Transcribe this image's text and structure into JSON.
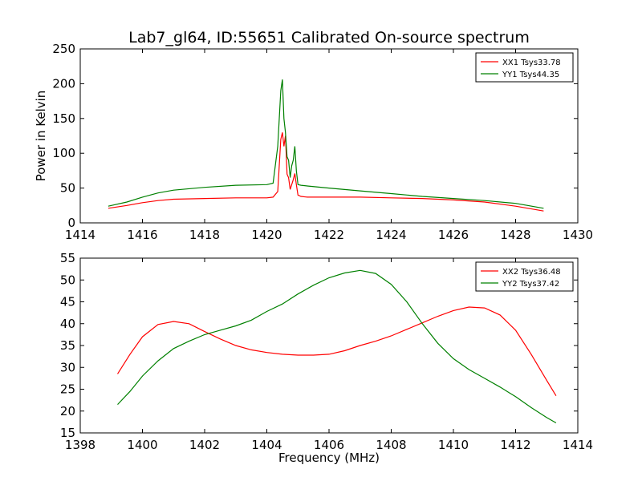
{
  "title": "Lab7_gl64, ID:55651 Calibrated On-source spectrum",
  "chart_data": [
    {
      "type": "line",
      "ylabel": "Power in Kelvin",
      "xlabel": "",
      "xlim": [
        1414,
        1430
      ],
      "ylim": [
        0,
        250
      ],
      "xticks": [
        1414,
        1416,
        1418,
        1420,
        1422,
        1424,
        1426,
        1428,
        1430
      ],
      "yticks": [
        0,
        50,
        100,
        150,
        200,
        250
      ],
      "legend_position": "top-right",
      "series": [
        {
          "name": "XX1 Tsys33.78",
          "color": "#ff0000",
          "x": [
            1414.9,
            1415.5,
            1416.0,
            1416.5,
            1417.0,
            1418.0,
            1419.0,
            1420.0,
            1420.2,
            1420.35,
            1420.45,
            1420.5,
            1420.55,
            1420.6,
            1420.65,
            1420.7,
            1420.75,
            1420.8,
            1420.85,
            1420.9,
            1420.95,
            1421.0,
            1421.1,
            1421.3,
            1422.0,
            1423.0,
            1424.0,
            1425.0,
            1426.0,
            1427.0,
            1428.0,
            1428.9
          ],
          "y": [
            21,
            25,
            29,
            32,
            34,
            35,
            36,
            36,
            37,
            45,
            120,
            130,
            110,
            125,
            70,
            65,
            48,
            55,
            62,
            71,
            55,
            40,
            38,
            37,
            37,
            37,
            36,
            35,
            33,
            30,
            24,
            17
          ]
        },
        {
          "name": "YY1 Tsys44.35",
          "color": "#008000",
          "x": [
            1414.9,
            1415.5,
            1416.0,
            1416.5,
            1417.0,
            1418.0,
            1419.0,
            1420.0,
            1420.2,
            1420.35,
            1420.45,
            1420.5,
            1420.55,
            1420.6,
            1420.65,
            1420.7,
            1420.75,
            1420.8,
            1420.85,
            1420.9,
            1420.95,
            1421.0,
            1421.1,
            1421.3,
            1422.0,
            1423.0,
            1424.0,
            1425.0,
            1426.0,
            1427.0,
            1428.0,
            1428.9
          ],
          "y": [
            24,
            30,
            37,
            43,
            47,
            51,
            54,
            55,
            57,
            110,
            190,
            206,
            150,
            130,
            95,
            90,
            65,
            82,
            90,
            110,
            75,
            55,
            54,
            53,
            50,
            46,
            42,
            38,
            35,
            32,
            28,
            21
          ]
        }
      ]
    },
    {
      "type": "line",
      "ylabel": "",
      "xlabel": "Frequency (MHz)",
      "xlim": [
        1398,
        1414
      ],
      "ylim": [
        15,
        55
      ],
      "xticks": [
        1398,
        1400,
        1402,
        1404,
        1406,
        1408,
        1410,
        1412,
        1414
      ],
      "yticks": [
        15,
        20,
        25,
        30,
        35,
        40,
        45,
        50,
        55
      ],
      "legend_position": "top-right",
      "series": [
        {
          "name": "XX2 Tsys36.48",
          "color": "#ff0000",
          "x": [
            1399.2,
            1399.6,
            1400.0,
            1400.5,
            1401.0,
            1401.5,
            1402.0,
            1402.5,
            1403.0,
            1403.5,
            1404.0,
            1404.5,
            1405.0,
            1405.5,
            1406.0,
            1406.5,
            1407.0,
            1407.5,
            1408.0,
            1408.5,
            1409.0,
            1409.5,
            1410.0,
            1410.5,
            1411.0,
            1411.5,
            1412.0,
            1412.5,
            1413.0,
            1413.3
          ],
          "y": [
            28.5,
            33,
            37,
            39.8,
            40.5,
            40,
            38.2,
            36.5,
            35,
            34,
            33.4,
            33,
            32.8,
            32.8,
            33,
            33.8,
            35,
            36,
            37.2,
            38.7,
            40.2,
            41.7,
            43,
            43.8,
            43.6,
            42,
            38.5,
            33,
            27,
            23.5
          ]
        },
        {
          "name": "YY2 Tsys37.42",
          "color": "#008000",
          "x": [
            1399.2,
            1399.6,
            1400.0,
            1400.5,
            1401.0,
            1401.5,
            1402.0,
            1402.5,
            1403.0,
            1403.5,
            1404.0,
            1404.5,
            1405.0,
            1405.5,
            1406.0,
            1406.5,
            1407.0,
            1407.5,
            1408.0,
            1408.5,
            1409.0,
            1409.5,
            1410.0,
            1410.5,
            1411.0,
            1411.5,
            1412.0,
            1412.5,
            1413.0,
            1413.3
          ],
          "y": [
            21.5,
            24.5,
            28,
            31.5,
            34.3,
            36,
            37.5,
            38.5,
            39.5,
            40.8,
            42.8,
            44.5,
            46.8,
            48.8,
            50.5,
            51.6,
            52.2,
            51.5,
            49,
            45,
            40,
            35.5,
            32,
            29.5,
            27.5,
            25.5,
            23.3,
            20.8,
            18.5,
            17.3
          ]
        }
      ]
    }
  ]
}
